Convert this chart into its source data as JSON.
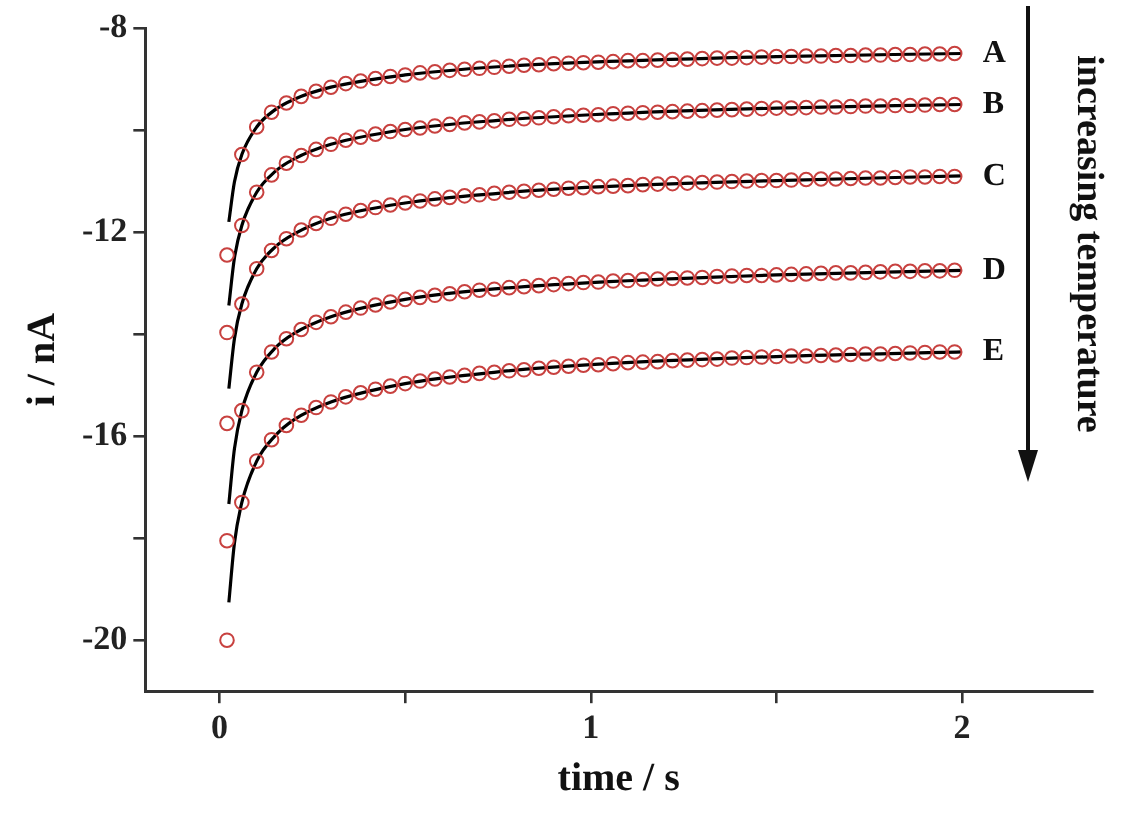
{
  "chart_data": {
    "type": "scatter",
    "xlabel": "time / s",
    "ylabel": "i / nA",
    "xlim": [
      -0.2,
      2.35
    ],
    "ylim": [
      -21,
      -8
    ],
    "xticks": [
      0,
      {
        "value": 0.5,
        "label": null
      },
      1,
      {
        "value": 1.5,
        "label": null
      },
      2
    ],
    "yticks": [
      -20,
      {
        "value": -18,
        "label": null
      },
      -16,
      {
        "value": -14,
        "label": null
      },
      -12,
      {
        "value": -10,
        "label": null
      },
      -8
    ],
    "grid": false,
    "legend": false,
    "marker": "circle",
    "x": [
      0.02,
      0.06,
      0.1,
      0.14,
      0.18,
      0.22,
      0.26,
      0.3,
      0.34,
      0.38,
      0.42,
      0.46,
      0.5,
      0.54,
      0.58,
      0.62,
      0.66,
      0.7,
      0.74,
      0.78,
      0.82,
      0.86,
      0.9,
      0.94,
      0.98,
      1.02,
      1.06,
      1.1,
      1.14,
      1.18,
      1.22,
      1.26,
      1.3,
      1.34,
      1.38,
      1.42,
      1.46,
      1.5,
      1.54,
      1.58,
      1.62,
      1.66,
      1.7,
      1.74,
      1.78,
      1.82,
      1.86,
      1.9,
      1.94,
      1.98
    ],
    "series": [
      {
        "name": "A",
        "color": "#c8413f",
        "values": [
          -12.45,
          -10.48,
          -9.94,
          -9.65,
          -9.47,
          -9.34,
          -9.24,
          -9.16,
          -9.09,
          -9.04,
          -8.99,
          -8.95,
          -8.92,
          -8.88,
          -8.86,
          -8.83,
          -8.81,
          -8.79,
          -8.77,
          -8.75,
          -8.73,
          -8.72,
          -8.7,
          -8.69,
          -8.68,
          -8.67,
          -8.66,
          -8.64,
          -8.64,
          -8.63,
          -8.62,
          -8.61,
          -8.6,
          -8.59,
          -8.59,
          -8.58,
          -8.57,
          -8.56,
          -8.56,
          -8.55,
          -8.55,
          -8.54,
          -8.54,
          -8.53,
          -8.53,
          -8.52,
          -8.52,
          -8.51,
          -8.51,
          -8.5
        ]
      },
      {
        "name": "B",
        "color": "#c8413f",
        "values": [
          -13.97,
          -11.87,
          -11.22,
          -10.88,
          -10.65,
          -10.5,
          -10.38,
          -10.28,
          -10.2,
          -10.14,
          -10.08,
          -10.03,
          -9.99,
          -9.96,
          -9.92,
          -9.89,
          -9.86,
          -9.84,
          -9.82,
          -9.79,
          -9.78,
          -9.76,
          -9.74,
          -9.72,
          -9.71,
          -9.7,
          -9.68,
          -9.67,
          -9.66,
          -9.65,
          -9.64,
          -9.63,
          -9.62,
          -9.61,
          -9.6,
          -9.59,
          -9.58,
          -9.57,
          -9.57,
          -9.56,
          -9.55,
          -9.55,
          -9.54,
          -9.53,
          -9.53,
          -9.52,
          -9.52,
          -9.51,
          -9.5,
          -9.5
        ]
      },
      {
        "name": "C",
        "color": "#c8413f",
        "values": [
          -15.75,
          -13.41,
          -12.72,
          -12.36,
          -12.13,
          -11.96,
          -11.83,
          -11.73,
          -11.65,
          -11.58,
          -11.52,
          -11.47,
          -11.43,
          -11.39,
          -11.35,
          -11.32,
          -11.29,
          -11.27,
          -11.24,
          -11.22,
          -11.2,
          -11.18,
          -11.16,
          -11.14,
          -11.13,
          -11.11,
          -11.1,
          -11.09,
          -11.07,
          -11.06,
          -11.05,
          -11.04,
          -11.03,
          -11.02,
          -11.01,
          -11,
          -10.99,
          -10.99,
          -10.98,
          -10.97,
          -10.96,
          -10.96,
          -10.95,
          -10.94,
          -10.94,
          -10.93,
          -10.92,
          -10.92,
          -10.91,
          -10.91
        ]
      },
      {
        "name": "D",
        "color": "#c8413f",
        "values": [
          -18.05,
          -15.5,
          -14.75,
          -14.35,
          -14.09,
          -13.91,
          -13.77,
          -13.66,
          -13.57,
          -13.49,
          -13.43,
          -13.37,
          -13.32,
          -13.28,
          -13.24,
          -13.21,
          -13.17,
          -13.14,
          -13.12,
          -13.09,
          -13.07,
          -13.05,
          -13.03,
          -13.01,
          -12.99,
          -12.98,
          -12.96,
          -12.95,
          -12.93,
          -12.92,
          -12.91,
          -12.9,
          -12.89,
          -12.87,
          -12.86,
          -12.85,
          -12.85,
          -12.84,
          -12.83,
          -12.82,
          -12.81,
          -12.8,
          -12.8,
          -12.79,
          -12.78,
          -12.77,
          -12.77,
          -12.76,
          -12.76,
          -12.75
        ]
      },
      {
        "name": "E",
        "color": "#c8413f",
        "values": [
          -20,
          -17.3,
          -16.49,
          -16.07,
          -15.79,
          -15.59,
          -15.44,
          -15.33,
          -15.23,
          -15.15,
          -15.08,
          -15.02,
          -14.97,
          -14.92,
          -14.88,
          -14.84,
          -14.81,
          -14.77,
          -14.75,
          -14.72,
          -14.7,
          -14.67,
          -14.65,
          -14.63,
          -14.61,
          -14.6,
          -14.58,
          -14.56,
          -14.55,
          -14.54,
          -14.52,
          -14.51,
          -14.5,
          -14.49,
          -14.47,
          -14.46,
          -14.45,
          -14.44,
          -14.43,
          -14.43,
          -14.42,
          -14.41,
          -14.4,
          -14.39,
          -14.39,
          -14.38,
          -14.37,
          -14.36,
          -14.35,
          -14.35
        ]
      },
      {
        "type": "line",
        "marker": "none",
        "color": "#000000",
        "x": [
          0.025,
          0.04,
          0.06,
          0.1,
          0.15,
          0.2,
          0.3,
          0.5,
          0.75,
          1,
          1.5,
          2
        ],
        "values": [
          -11.8,
          -11.02,
          -10.48,
          -9.94,
          -9.6,
          -9.4,
          -9.16,
          -8.92,
          -8.76,
          -8.67,
          -8.56,
          -8.5
        ]
      },
      {
        "type": "line",
        "marker": "none",
        "color": "#000000",
        "x": [
          0.025,
          0.04,
          0.06,
          0.1,
          0.15,
          0.2,
          0.3,
          0.5,
          0.75,
          1,
          1.5,
          2
        ],
        "values": [
          -13.44,
          -12.51,
          -11.87,
          -11.22,
          -10.81,
          -10.57,
          -10.28,
          -9.99,
          -9.81,
          -9.7,
          -9.57,
          -9.5
        ]
      },
      {
        "type": "line",
        "marker": "none",
        "color": "#000000",
        "x": [
          0.025,
          0.04,
          0.06,
          0.1,
          0.15,
          0.2,
          0.3,
          0.5,
          0.75,
          1,
          1.5,
          2
        ],
        "values": [
          -15.07,
          -14.09,
          -13.41,
          -12.72,
          -12.29,
          -12.04,
          -11.73,
          -11.43,
          -11.24,
          -11.12,
          -10.99,
          -10.9
        ]
      },
      {
        "type": "line",
        "marker": "none",
        "color": "#000000",
        "x": [
          0.025,
          0.04,
          0.06,
          0.1,
          0.15,
          0.2,
          0.3,
          0.5,
          0.75,
          1,
          1.5,
          2
        ],
        "values": [
          -17.33,
          -16.25,
          -15.5,
          -14.75,
          -14.27,
          -13.99,
          -13.66,
          -13.32,
          -13.11,
          -12.99,
          -12.84,
          -12.75
        ]
      },
      {
        "type": "line",
        "marker": "none",
        "color": "#000000",
        "x": [
          0.025,
          0.04,
          0.06,
          0.1,
          0.15,
          0.2,
          0.3,
          0.5,
          0.75,
          1,
          1.5,
          2
        ],
        "values": [
          -19.26,
          -18.1,
          -17.3,
          -16.49,
          -15.99,
          -15.68,
          -15.33,
          -14.97,
          -14.74,
          -14.6,
          -14.44,
          -14.35
        ]
      }
    ],
    "annotations": [
      "increasing temperature"
    ]
  }
}
